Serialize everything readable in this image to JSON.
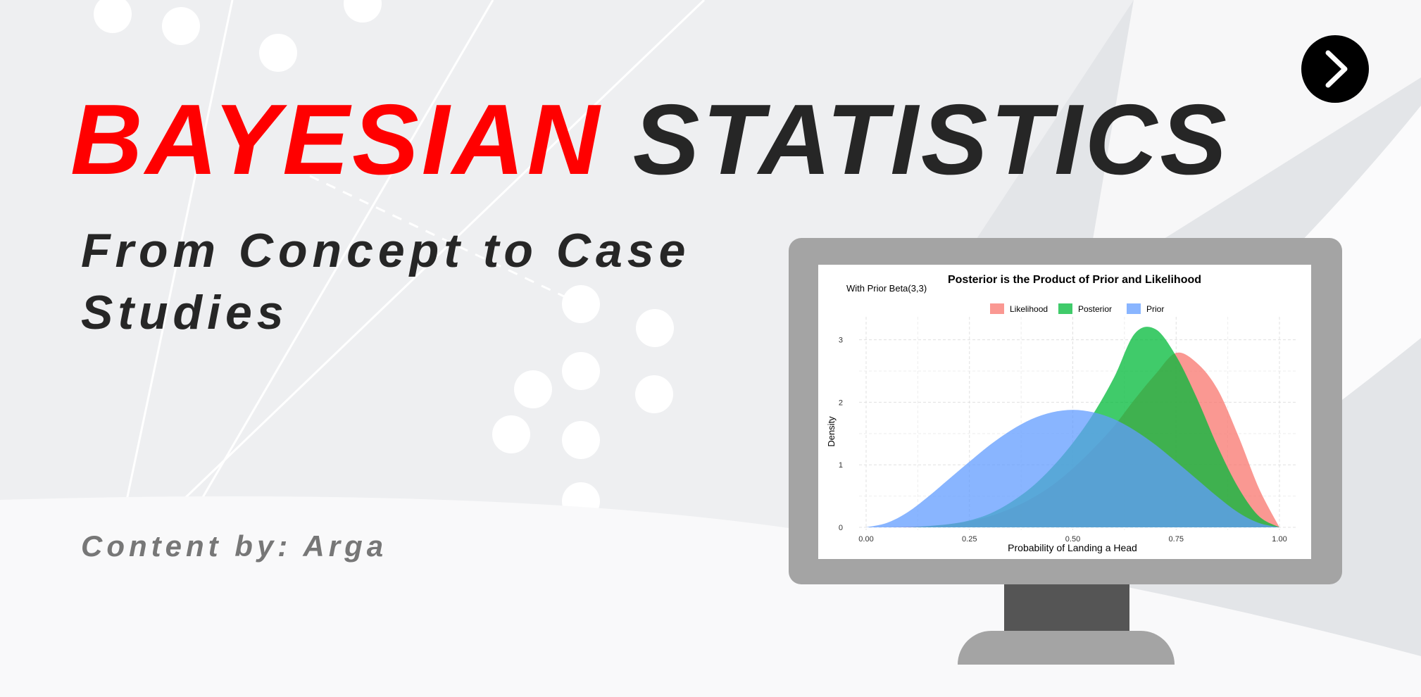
{
  "banner": {
    "title_red": "BAYESIAN",
    "title_dark": "STATISTICS",
    "subtitle": "From Concept to Case Studies",
    "credit": "Content by: Arga",
    "next_icon": "chevron-right-icon"
  },
  "colors": {
    "accent_red": "#ff0000",
    "text_dark": "#262626",
    "credit_gray": "#777777",
    "likelihood": "#f8766d",
    "posterior": "#00ba38",
    "prior": "#619cff"
  },
  "chart_data": {
    "type": "area",
    "title": "Posterior is the Product of Prior and Likelihood",
    "subtitle": "With Prior Beta(3,3)",
    "xlabel": "Probability of Landing a Head",
    "ylabel": "Density",
    "xlim": [
      0,
      1
    ],
    "ylim": [
      0,
      3.3
    ],
    "x_ticks": [
      "0.00",
      "0.25",
      "0.50",
      "0.75",
      "1.00"
    ],
    "y_ticks": [
      "0",
      "1",
      "2",
      "3"
    ],
    "grid": true,
    "legend_position": "top",
    "legend": [
      "Likelihood",
      "Posterior",
      "Prior"
    ],
    "x": [
      0,
      0.05,
      0.1,
      0.15,
      0.2,
      0.25,
      0.3,
      0.35,
      0.4,
      0.45,
      0.5,
      0.55,
      0.6,
      0.65,
      0.7,
      0.75,
      0.8,
      0.85,
      0.9,
      0.95,
      1
    ],
    "series": [
      {
        "name": "Likelihood",
        "values": [
          0,
          0,
          0.01,
          0.02,
          0.05,
          0.1,
          0.18,
          0.3,
          0.46,
          0.67,
          0.94,
          1.26,
          1.62,
          2.05,
          2.45,
          2.79,
          2.63,
          2.21,
          1.47,
          0.63,
          0
        ]
      },
      {
        "name": "Posterior",
        "values": [
          0,
          0,
          0,
          0.02,
          0.05,
          0.11,
          0.22,
          0.4,
          0.64,
          0.96,
          1.35,
          1.82,
          2.4,
          3.1,
          3.17,
          2.74,
          2.07,
          1.3,
          0.64,
          0.18,
          0
        ]
      },
      {
        "name": "Prior",
        "values": [
          0,
          0.07,
          0.24,
          0.49,
          0.77,
          1.05,
          1.32,
          1.55,
          1.73,
          1.84,
          1.88,
          1.84,
          1.73,
          1.55,
          1.32,
          1.05,
          0.77,
          0.49,
          0.24,
          0.07,
          0
        ]
      }
    ]
  }
}
